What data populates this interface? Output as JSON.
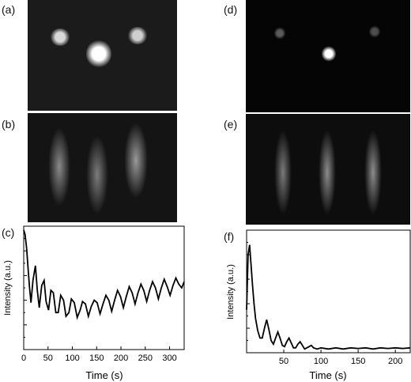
{
  "panels": {
    "a": "(a)",
    "b": "(b)",
    "c": "(c)",
    "d": "(d)",
    "e": "(e)",
    "f": "(f)"
  },
  "images": {
    "a": {
      "background": "#1b1b1b",
      "spots": [
        "#d8d8d8",
        "#ffffff",
        "#cfcfcf"
      ]
    },
    "b": {
      "background": "#141414",
      "streaks": [
        "#8a8a8a",
        "#7c7c7c",
        "#9a9a9a"
      ]
    },
    "d": {
      "background": "#050505",
      "spots": [
        "#5a5a5a",
        "#ffffff",
        "#4d4d4d"
      ]
    },
    "e": {
      "background": "#0d0d0d",
      "streaks": [
        "#7a7a7a",
        "#8c8c8c",
        "#8c8c8c"
      ]
    }
  },
  "chart_data": [
    {
      "id": "c",
      "type": "line",
      "title": "",
      "xlabel": "Time (s)",
      "ylabel": "Intensity (a.u.)",
      "xlim": [
        0,
        330
      ],
      "ylim": [
        0,
        1
      ],
      "xticks": [
        0,
        50,
        100,
        150,
        200,
        250,
        300
      ],
      "xtick_labels": [
        "0",
        "50",
        "100",
        "150",
        "200",
        "250",
        "300"
      ],
      "y_minor_ticks": true,
      "series_color": "#000000",
      "series": [
        {
          "x": [
            0,
            3,
            6,
            9,
            12,
            15,
            19,
            24,
            28,
            32,
            37,
            42,
            46,
            51,
            56,
            61,
            66,
            71,
            76,
            82,
            87,
            93,
            98,
            104,
            110,
            116,
            121,
            127,
            133,
            139,
            145,
            151,
            157,
            163,
            169,
            175,
            181,
            187,
            193,
            199,
            205,
            211,
            217,
            223,
            229,
            235,
            241,
            247,
            253,
            259,
            265,
            271,
            277,
            283,
            289,
            295,
            301,
            307,
            313,
            319,
            325,
            330
          ],
          "y": [
            0.97,
            0.93,
            0.82,
            0.66,
            0.5,
            0.38,
            0.56,
            0.68,
            0.48,
            0.34,
            0.52,
            0.56,
            0.39,
            0.32,
            0.48,
            0.46,
            0.3,
            0.3,
            0.44,
            0.4,
            0.27,
            0.3,
            0.41,
            0.38,
            0.26,
            0.32,
            0.39,
            0.37,
            0.27,
            0.35,
            0.4,
            0.38,
            0.29,
            0.37,
            0.44,
            0.4,
            0.31,
            0.4,
            0.48,
            0.43,
            0.34,
            0.43,
            0.51,
            0.46,
            0.37,
            0.46,
            0.53,
            0.48,
            0.39,
            0.48,
            0.55,
            0.5,
            0.41,
            0.5,
            0.57,
            0.51,
            0.44,
            0.52,
            0.58,
            0.53,
            0.5,
            0.55
          ]
        }
      ]
    },
    {
      "id": "f",
      "type": "line",
      "title": "",
      "xlabel": "Time (s)",
      "ylabel": "Intensity (a.u.)",
      "xlim": [
        0,
        220
      ],
      "ylim": [
        0,
        1
      ],
      "xticks": [
        0,
        50,
        100,
        150,
        200
      ],
      "xtick_labels": [
        "",
        "50",
        "100",
        "150",
        "200"
      ],
      "y_minor_ticks": true,
      "series_color": "#000000",
      "series": [
        {
          "x": [
            0,
            2,
            4,
            6,
            8,
            10,
            12,
            15,
            18,
            21,
            24,
            27,
            30,
            33,
            36,
            39,
            42,
            45,
            48,
            51,
            54,
            57,
            60,
            63,
            66,
            69,
            72,
            75,
            78,
            81,
            84,
            87,
            90,
            95,
            100,
            110,
            120,
            130,
            140,
            150,
            160,
            170,
            180,
            190,
            200,
            210,
            220
          ],
          "y": [
            0.35,
            0.8,
            0.88,
            0.72,
            0.55,
            0.4,
            0.28,
            0.18,
            0.12,
            0.12,
            0.2,
            0.27,
            0.19,
            0.1,
            0.07,
            0.12,
            0.17,
            0.12,
            0.06,
            0.05,
            0.09,
            0.12,
            0.08,
            0.04,
            0.04,
            0.07,
            0.09,
            0.06,
            0.03,
            0.04,
            0.05,
            0.06,
            0.04,
            0.03,
            0.04,
            0.03,
            0.04,
            0.03,
            0.04,
            0.035,
            0.04,
            0.03,
            0.04,
            0.035,
            0.04,
            0.035,
            0.04
          ]
        }
      ]
    }
  ]
}
